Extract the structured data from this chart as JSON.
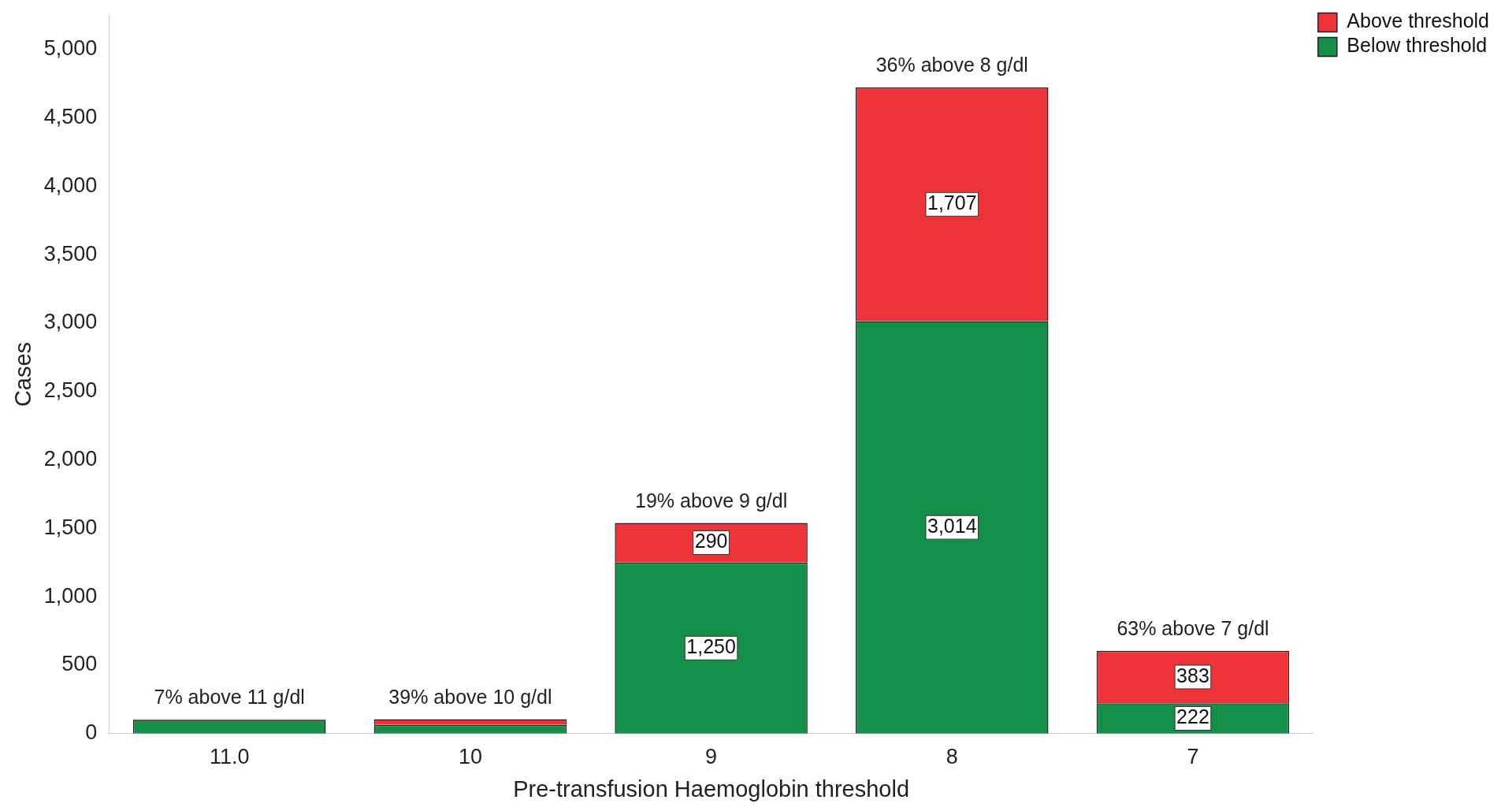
{
  "chart_data": {
    "type": "bar",
    "stacked": true,
    "xlabel": "Pre-transfusion Haemoglobin threshold",
    "ylabel": "Cases",
    "categories": [
      "11.0",
      "10",
      "9",
      "8",
      "7"
    ],
    "series": [
      {
        "name": "Below threshold",
        "color": "#138f48",
        "values": [
          98,
          64,
          1250,
          3014,
          222
        ],
        "value_labels": [
          null,
          null,
          "1,250",
          "3,014",
          "222"
        ]
      },
      {
        "name": "Above threshold",
        "color": "#ee3338",
        "values": [
          7,
          41,
          290,
          1707,
          383
        ],
        "value_labels": [
          null,
          null,
          "290",
          "1,707",
          "383"
        ]
      }
    ],
    "ylim": [
      0,
      5250
    ],
    "yticks": [
      0,
      {
        "value": 500,
        "label": "500"
      },
      {
        "value": 1000,
        "label": "1,000"
      },
      {
        "value": 1500,
        "label": "1,500"
      },
      {
        "value": 2000,
        "label": "2,000"
      },
      {
        "value": 2500,
        "label": "2,500"
      },
      {
        "value": 3000,
        "label": "3,000"
      },
      {
        "value": 3500,
        "label": "3,500"
      },
      {
        "value": 4000,
        "label": "4,000"
      },
      {
        "value": 4500,
        "label": "4,500"
      },
      {
        "value": 5000,
        "label": "5,000"
      }
    ],
    "annotations": [
      {
        "text": "7% above 11 g/dl",
        "x": "11.0",
        "y": 105
      },
      {
        "text": "39% above 10 g/dl",
        "x": "10",
        "y": 105
      },
      {
        "text": "19% above 9 g/dl",
        "x": "9",
        "y": 1540
      },
      {
        "text": "36% above 8 g/dl",
        "x": "8",
        "y": 4721
      },
      {
        "text": "63% above 7 g/dl",
        "x": "7",
        "y": 605
      }
    ],
    "grid": false,
    "legend": "top right"
  }
}
